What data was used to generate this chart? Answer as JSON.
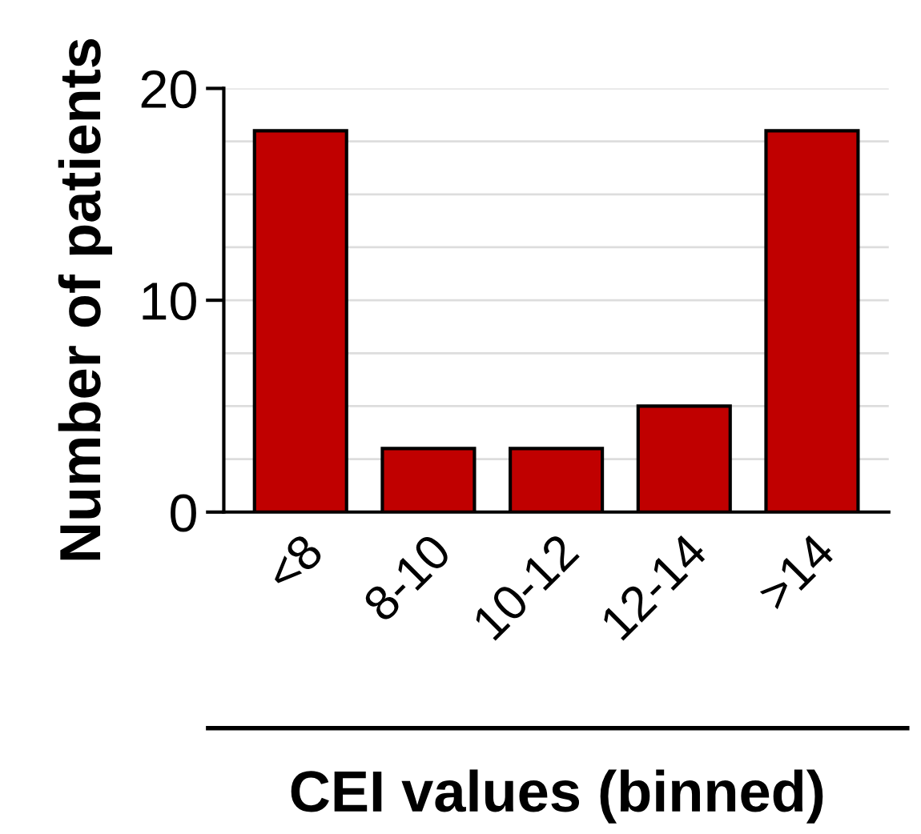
{
  "chart_data": {
    "type": "bar",
    "xlabel": "CEI values (binned)",
    "ylabel": "Number of patients",
    "categories": [
      "<8",
      "8-10",
      "10-12",
      "12-14",
      ">14"
    ],
    "values": [
      18,
      3,
      3,
      5,
      18
    ],
    "color": "#c00000",
    "ylim": [
      0,
      20
    ],
    "yticks": [
      0,
      {
        "value": 2.5,
        "label": null
      },
      {
        "value": 5,
        "label": null
      },
      {
        "value": 7.5,
        "label": null
      },
      10,
      {
        "value": 12.5,
        "label": null
      },
      {
        "value": 15,
        "label": null
      },
      {
        "value": 17.5,
        "label": null
      },
      20
    ],
    "grid": "y"
  }
}
